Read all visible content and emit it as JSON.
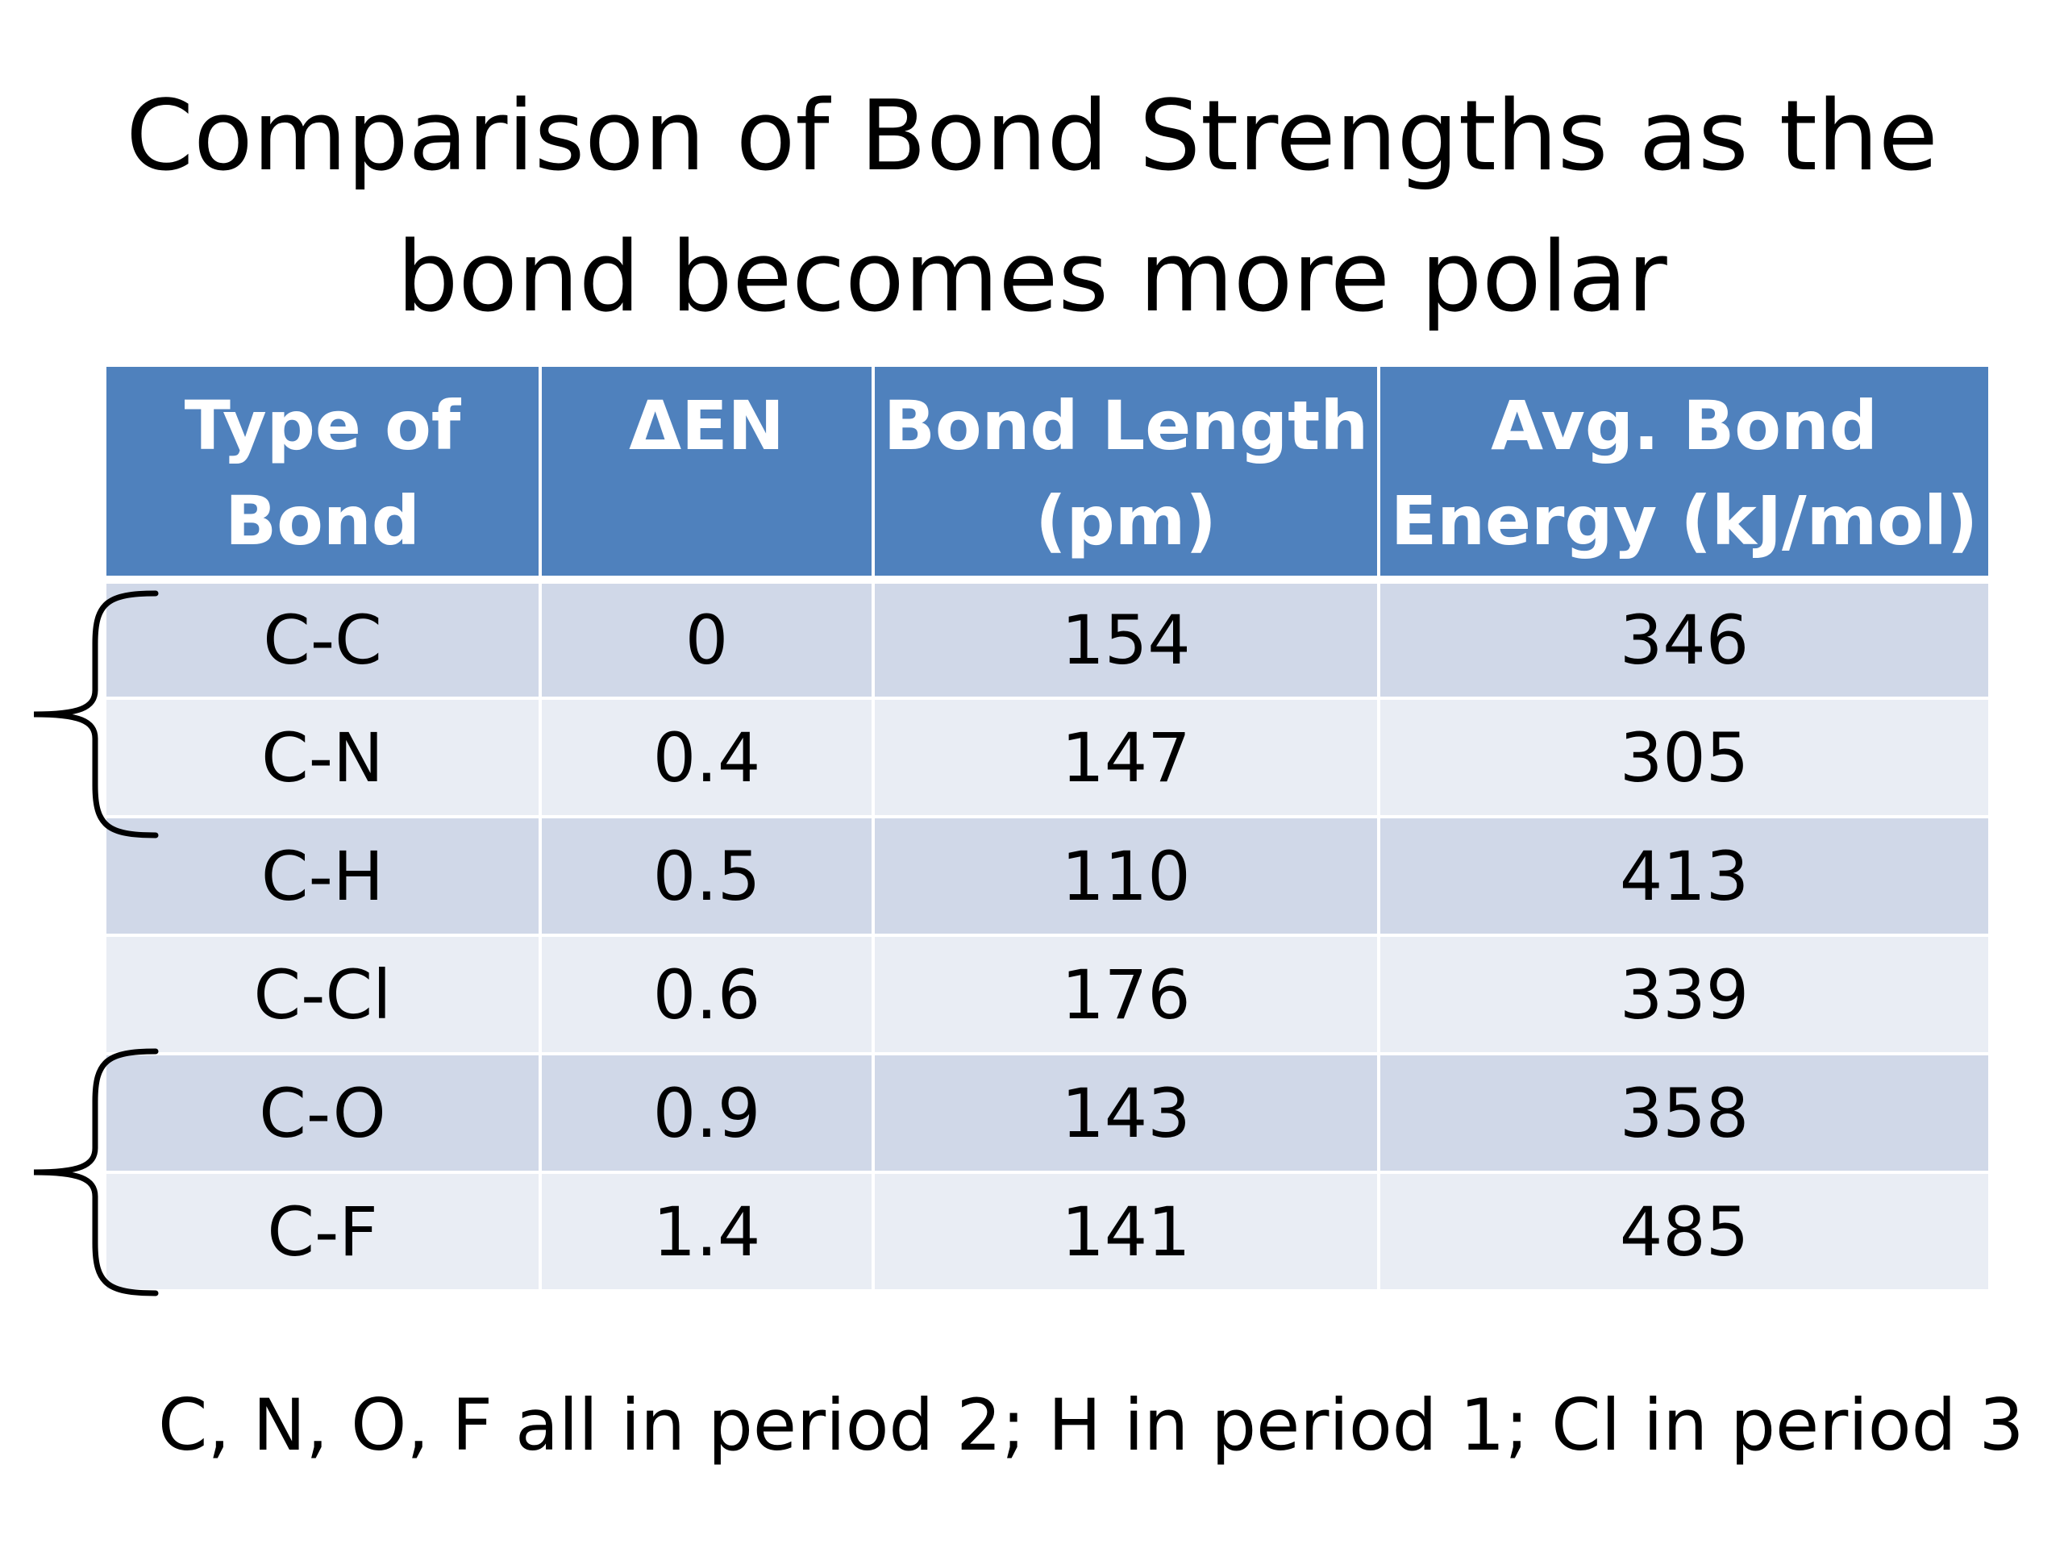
{
  "title": {
    "line1": "Comparison of Bond Strengths as the",
    "line2": "bond becomes more polar"
  },
  "table": {
    "headers": [
      {
        "line1": "Type of",
        "line2": "Bond"
      },
      {
        "line1": "ΔEN",
        "line2": ""
      },
      {
        "line1": "Bond Length",
        "line2": "(pm)"
      },
      {
        "line1": "Avg. Bond",
        "line2": "Energy (kJ/mol)"
      }
    ],
    "rows": [
      [
        "C-C",
        "0",
        "154",
        "346"
      ],
      [
        "C-N",
        "0.4",
        "147",
        "305"
      ],
      [
        "C-H",
        "0.5",
        "110",
        "413"
      ],
      [
        "C-Cl",
        "0.6",
        "176",
        "339"
      ],
      [
        "C-O",
        "0.9",
        "143",
        "358"
      ],
      [
        "C-F",
        "1.4",
        "141",
        "485"
      ]
    ],
    "colors": {
      "header_bg": "#4f81bd",
      "row_dark": "#d0d8e8",
      "row_light": "#e9edf4"
    }
  },
  "footnote": "C, N, O, F all in period 2; H in period 1; Cl in period 3"
}
